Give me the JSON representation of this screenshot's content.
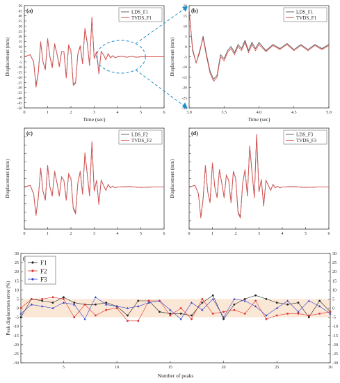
{
  "colors": {
    "lds": "#555555",
    "tvds": "#e05555",
    "f1": "#222222",
    "f2": "#e03030",
    "f3": "#3040d0",
    "zoom": "#1a8fd0",
    "band": "#fbe7d5"
  },
  "chart_data": [
    {
      "id": "a",
      "type": "line",
      "panel_label": "(a)",
      "xlabel": "Time (sec)",
      "ylabel": "Displacement (mm)",
      "xlim": [
        0,
        6
      ],
      "ylim": [
        -50,
        50
      ],
      "xticks": [
        0,
        1,
        2,
        3,
        4,
        5,
        6
      ],
      "yticks": [
        -50,
        -45,
        -40,
        -35,
        -30,
        -25,
        -20,
        -15,
        -10,
        -5,
        0,
        5,
        10,
        15,
        20,
        25,
        30,
        35,
        40,
        45,
        50
      ],
      "legend": [
        "LDS_F1",
        "TVDS_F1"
      ],
      "legend_loc": "top-right",
      "x": [
        0,
        0.25,
        0.4,
        0.5,
        0.6,
        0.7,
        0.8,
        0.9,
        1.0,
        1.1,
        1.2,
        1.3,
        1.4,
        1.5,
        1.6,
        1.7,
        1.8,
        1.9,
        2.0,
        2.1,
        2.2,
        2.3,
        2.4,
        2.5,
        2.6,
        2.7,
        2.8,
        2.9,
        3.0,
        3.1,
        3.2,
        3.3,
        3.4,
        3.5,
        3.6,
        3.7,
        3.8,
        3.9,
        4.0,
        4.2,
        4.4,
        4.6,
        4.8,
        5.0,
        5.5,
        6.0
      ],
      "series": [
        {
          "name": "LDS_F1",
          "values": [
            0,
            2,
            -5,
            -28,
            -15,
            14,
            -5,
            -12,
            17,
            0,
            -10,
            12,
            3,
            -9,
            5,
            5,
            -20,
            11,
            6,
            -27,
            -25,
            3,
            10,
            -7,
            27,
            13,
            -8,
            38,
            -2,
            5,
            -16,
            5,
            2,
            -3,
            3,
            -1,
            1,
            -1,
            0,
            0.5,
            -0.5,
            0.5,
            -0.5,
            0,
            0,
            0
          ]
        },
        {
          "name": "TVDS_F1",
          "values": [
            0,
            2,
            -5,
            -30,
            -16,
            15,
            -5,
            -13,
            18,
            0,
            -11,
            13,
            3,
            -10,
            5,
            5,
            -21,
            12,
            6,
            -28,
            -26,
            3,
            11,
            -7,
            28,
            14,
            -9,
            39,
            -2,
            5,
            -17,
            5,
            2,
            -3,
            3,
            -1,
            1,
            -1,
            0,
            0.5,
            -0.5,
            0.5,
            -0.5,
            0,
            0,
            0
          ]
        }
      ]
    },
    {
      "id": "b",
      "type": "line",
      "panel_label": "(b)",
      "xlabel": "Time (sec)",
      "ylabel": "Displacement (mm)",
      "xlim": [
        3.0,
        5.0
      ],
      "ylim": [
        -30,
        20
      ],
      "xticks": [
        3.0,
        3.5,
        4.0,
        4.5,
        5.0
      ],
      "yticks": [
        -30,
        -25,
        -20,
        -15,
        -10,
        -5,
        0,
        5,
        10,
        15,
        20
      ],
      "legend": [
        "LDS_F1",
        "TVDS_F1"
      ],
      "legend_loc": "top-right",
      "x": [
        3.0,
        3.05,
        3.1,
        3.15,
        3.2,
        3.25,
        3.3,
        3.35,
        3.4,
        3.45,
        3.5,
        3.55,
        3.6,
        3.65,
        3.7,
        3.75,
        3.8,
        3.85,
        3.9,
        3.95,
        4.0,
        4.1,
        4.2,
        4.3,
        4.4,
        4.5,
        4.6,
        4.7,
        4.8,
        4.9,
        5.0
      ],
      "series": [
        {
          "name": "LDS_F1",
          "values": [
            18,
            -2,
            -8,
            -3,
            5,
            -4,
            -12,
            -16,
            -14,
            -4,
            -6,
            -2,
            0,
            -3,
            1,
            -1,
            3,
            -2,
            2,
            -1,
            2,
            -2,
            1,
            -1,
            1.5,
            -1.5,
            1,
            -1.5,
            1,
            -1,
            1
          ]
        },
        {
          "name": "TVDS_F1",
          "values": [
            18,
            -1,
            -8,
            -2,
            4,
            -5,
            -13,
            -17,
            -15,
            -5,
            -7,
            -3,
            -1,
            -4,
            0,
            -2,
            2,
            -3,
            1,
            -2,
            1,
            -2.5,
            0.5,
            -1.5,
            1,
            -2,
            0.5,
            -2,
            0.5,
            -1.5,
            0.5
          ]
        }
      ]
    },
    {
      "id": "c",
      "type": "line",
      "panel_label": "(c)",
      "xlabel": "",
      "ylabel": "Displacement (mm)",
      "xlim": [
        0,
        6
      ],
      "ylim": [
        -50,
        70
      ],
      "xticks": [
        0,
        1,
        2,
        3,
        4,
        5,
        6
      ],
      "yticks": [],
      "legend": [
        "LDS_F2",
        "TVDS_F2"
      ],
      "legend_loc": "top-right",
      "x": [
        0,
        0.25,
        0.4,
        0.5,
        0.6,
        0.7,
        0.8,
        0.9,
        1.0,
        1.1,
        1.2,
        1.3,
        1.4,
        1.5,
        1.6,
        1.7,
        1.8,
        1.9,
        2.0,
        2.1,
        2.2,
        2.3,
        2.4,
        2.5,
        2.6,
        2.7,
        2.8,
        2.9,
        3.0,
        3.1,
        3.2,
        3.3,
        3.4,
        3.5,
        3.6,
        3.7,
        3.8,
        3.9,
        4.0,
        4.5,
        5.0,
        5.5,
        6.0
      ],
      "series": [
        {
          "name": "LDS_F2",
          "values": [
            0,
            2,
            -8,
            -33,
            -12,
            22,
            -5,
            -15,
            25,
            0,
            -10,
            18,
            5,
            -10,
            12,
            8,
            -15,
            15,
            10,
            -25,
            -30,
            5,
            18,
            -8,
            40,
            15,
            -10,
            53,
            -5,
            8,
            -20,
            8,
            2,
            -4,
            3,
            -1,
            1,
            -1,
            0,
            0.5,
            -0.5,
            0,
            0
          ]
        },
        {
          "name": "TVDS_F2",
          "values": [
            0,
            2,
            -8,
            -34,
            -13,
            23,
            -5,
            -16,
            26,
            0,
            -11,
            19,
            5,
            -11,
            12,
            8,
            -16,
            16,
            10,
            -26,
            -32,
            5,
            19,
            -9,
            41,
            16,
            -11,
            54,
            -5,
            8,
            -21,
            8,
            2,
            -4,
            3,
            -1,
            1,
            -1,
            0,
            0.5,
            -0.5,
            0,
            0
          ]
        }
      ]
    },
    {
      "id": "d",
      "type": "line",
      "panel_label": "(d)",
      "xlabel": "",
      "ylabel": "Displacement (mm)",
      "xlim": [
        0,
        6
      ],
      "ylim": [
        -50,
        70
      ],
      "xticks": [
        0,
        1,
        2,
        3,
        4,
        5,
        6
      ],
      "yticks": [],
      "legend": [
        "LDS_F3",
        "TVDS_F3"
      ],
      "legend_loc": "top-right",
      "x": [
        0,
        0.25,
        0.4,
        0.5,
        0.6,
        0.7,
        0.8,
        0.9,
        1.0,
        1.1,
        1.2,
        1.3,
        1.4,
        1.5,
        1.6,
        1.7,
        1.8,
        1.9,
        2.0,
        2.1,
        2.2,
        2.3,
        2.4,
        2.5,
        2.6,
        2.7,
        2.8,
        2.9,
        3.0,
        3.1,
        3.2,
        3.3,
        3.4,
        3.5,
        3.6,
        3.7,
        3.8,
        3.9,
        4.0,
        4.5,
        5.0,
        5.5,
        6.0
      ],
      "series": [
        {
          "name": "LDS_F3",
          "values": [
            0,
            2,
            -8,
            -36,
            -14,
            25,
            -6,
            -18,
            28,
            0,
            -12,
            20,
            5,
            -12,
            14,
            8,
            -18,
            18,
            10,
            -30,
            -35,
            5,
            20,
            -10,
            48,
            18,
            -12,
            62,
            -6,
            9,
            -22,
            8,
            2,
            -4,
            3,
            -1,
            1,
            -1,
            0,
            0.5,
            -0.5,
            0,
            0
          ]
        },
        {
          "name": "TVDS_F3",
          "values": [
            0,
            2,
            -8,
            -37,
            -15,
            26,
            -6,
            -19,
            29,
            0,
            -13,
            21,
            5,
            -13,
            14,
            8,
            -19,
            19,
            10,
            -31,
            -37,
            5,
            21,
            -11,
            49,
            19,
            -13,
            63,
            -6,
            9,
            -23,
            8,
            2,
            -4,
            3,
            -1,
            1,
            -1,
            0,
            0.5,
            -0.5,
            0,
            0
          ]
        }
      ]
    },
    {
      "id": "e",
      "type": "line",
      "panel_label": "(e)",
      "xlabel": "Number of peaks",
      "ylabel": "Peak displacemen error (%)",
      "xlim": [
        1,
        30
      ],
      "ylim": [
        -30,
        30
      ],
      "xticks": [
        5,
        10,
        15,
        20,
        25,
        30
      ],
      "yticks": [
        -30,
        -25,
        -20,
        -15,
        -10,
        -5,
        0,
        5,
        10,
        15,
        20,
        25,
        30
      ],
      "band": [
        -5,
        5
      ],
      "legend": [
        "F1",
        "F2",
        "F3"
      ],
      "legend_loc": "top-left",
      "x": [
        1,
        2,
        3,
        4,
        5,
        6,
        7,
        8,
        9,
        10,
        11,
        12,
        13,
        14,
        15,
        16,
        17,
        18,
        19,
        20,
        21,
        22,
        23,
        24,
        25,
        26,
        27,
        28,
        29,
        30
      ],
      "series": [
        {
          "name": "F1",
          "values": [
            -5,
            5,
            4,
            3,
            6,
            3,
            2,
            2,
            3,
            1,
            -4,
            4,
            4,
            -2,
            -3,
            -3,
            -4,
            3,
            7,
            -6,
            2,
            5,
            7,
            5,
            3,
            2,
            3,
            -5,
            4,
            -2
          ]
        },
        {
          "name": "F2",
          "values": [
            0,
            5,
            5,
            6,
            5,
            -5,
            2,
            -4,
            -1,
            0,
            -7,
            -7,
            4,
            4,
            -4,
            0,
            -6,
            5,
            -3,
            -2,
            -1,
            -3,
            4,
            -6,
            -4,
            -3,
            -3,
            -4,
            -3,
            -2
          ]
        },
        {
          "name": "F3",
          "values": [
            -3,
            2,
            1,
            0,
            3,
            2,
            -6,
            6,
            2,
            1,
            0,
            1,
            3,
            4,
            -1,
            -6,
            3,
            -1,
            5,
            -5,
            5,
            4,
            1,
            -4,
            0,
            4,
            -2,
            4,
            1,
            -3
          ]
        }
      ]
    }
  ]
}
